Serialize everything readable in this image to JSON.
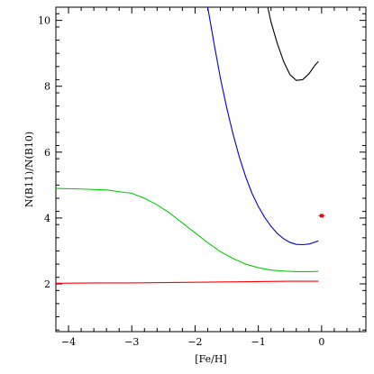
{
  "chart_data": {
    "type": "line",
    "xlabel": "[Fe/H]",
    "ylabel": "N(B11)/N(B10)",
    "xlim": [
      -4.2,
      0.7
    ],
    "ylim": [
      0.55,
      10.4
    ],
    "x_ticks": [
      -4,
      -3,
      -2,
      -1,
      0
    ],
    "x_tick_labels": [
      "−4",
      "−3",
      "−2",
      "−1",
      "0"
    ],
    "y_ticks": [
      2,
      4,
      6,
      8,
      10
    ],
    "y_tick_labels": [
      "2",
      "4",
      "6",
      "8",
      "10"
    ],
    "grid": false,
    "series": [
      {
        "color": "#ff0000",
        "x": [
          -4.2,
          -3.5,
          -3.0,
          -2.5,
          -2.0,
          -1.5,
          -1.0,
          -0.5,
          -0.05
        ],
        "y": [
          2.02,
          2.03,
          2.03,
          2.04,
          2.05,
          2.06,
          2.07,
          2.08,
          2.08
        ]
      },
      {
        "color": "#00cc00",
        "x": [
          -4.2,
          -3.8,
          -3.4,
          -3.0,
          -2.8,
          -2.6,
          -2.4,
          -2.2,
          -2.0,
          -1.8,
          -1.6,
          -1.4,
          -1.2,
          -1.0,
          -0.8,
          -0.6,
          -0.4,
          -0.2,
          -0.05
        ],
        "y": [
          4.9,
          4.88,
          4.85,
          4.75,
          4.6,
          4.4,
          4.15,
          3.85,
          3.55,
          3.25,
          2.98,
          2.77,
          2.6,
          2.49,
          2.42,
          2.39,
          2.37,
          2.37,
          2.38
        ]
      },
      {
        "color": "#0000cc",
        "x": [
          -1.8,
          -1.7,
          -1.6,
          -1.5,
          -1.4,
          -1.3,
          -1.2,
          -1.1,
          -1.0,
          -0.9,
          -0.8,
          -0.7,
          -0.6,
          -0.5,
          -0.4,
          -0.3,
          -0.2,
          -0.1,
          -0.05
        ],
        "y": [
          10.4,
          9.3,
          8.25,
          7.35,
          6.55,
          5.85,
          5.25,
          4.75,
          4.35,
          4.02,
          3.75,
          3.53,
          3.37,
          3.26,
          3.2,
          3.19,
          3.21,
          3.27,
          3.31
        ]
      },
      {
        "color": "#000000",
        "x": [
          -0.85,
          -0.8,
          -0.7,
          -0.6,
          -0.5,
          -0.4,
          -0.3,
          -0.2,
          -0.1,
          -0.05
        ],
        "y": [
          10.4,
          9.95,
          9.3,
          8.75,
          8.35,
          8.18,
          8.2,
          8.38,
          8.65,
          8.75
        ]
      }
    ],
    "points": [
      {
        "color": "#ff0000",
        "x": 0.0,
        "y": 4.07,
        "xerr": 0.05,
        "yerr": 0.04
      }
    ]
  }
}
